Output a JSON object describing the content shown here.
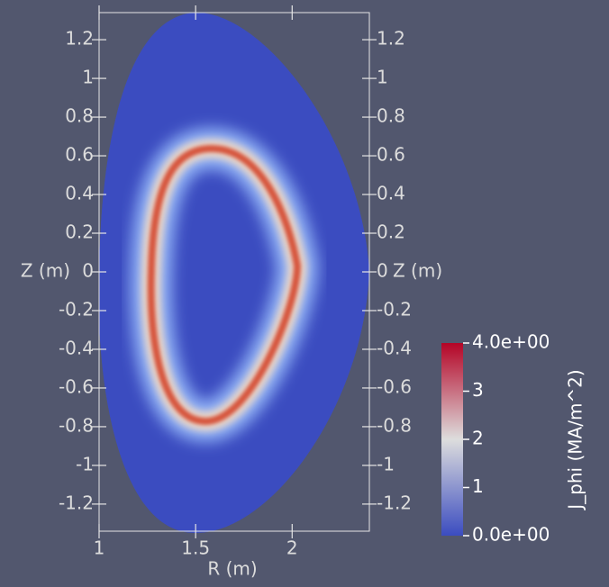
{
  "chart_data": {
    "type": "field",
    "x_label": "R (m)",
    "y_label": "Z (m)",
    "xlim": [
      1,
      2.4
    ],
    "ylim": [
      -1.34,
      1.34
    ],
    "xticks": [
      1,
      1.5,
      2
    ],
    "yticks": [
      -1.2,
      -1,
      -0.8,
      -0.6,
      -0.4,
      -0.2,
      0,
      0.2,
      0.4,
      0.6,
      0.8,
      1,
      1.2
    ],
    "background": "#52576e",
    "colorbar": {
      "title": "J_phi (MA/m^2)",
      "clim": [
        0,
        4
      ],
      "ticks": [
        {
          "value": 0,
          "label": "0.0e+00"
        },
        1,
        2,
        3,
        {
          "value": 4,
          "label": "4.0e+00"
        }
      ],
      "colors": [
        "#3b4cc0",
        "#dddddd",
        "#b40426"
      ]
    }
  }
}
